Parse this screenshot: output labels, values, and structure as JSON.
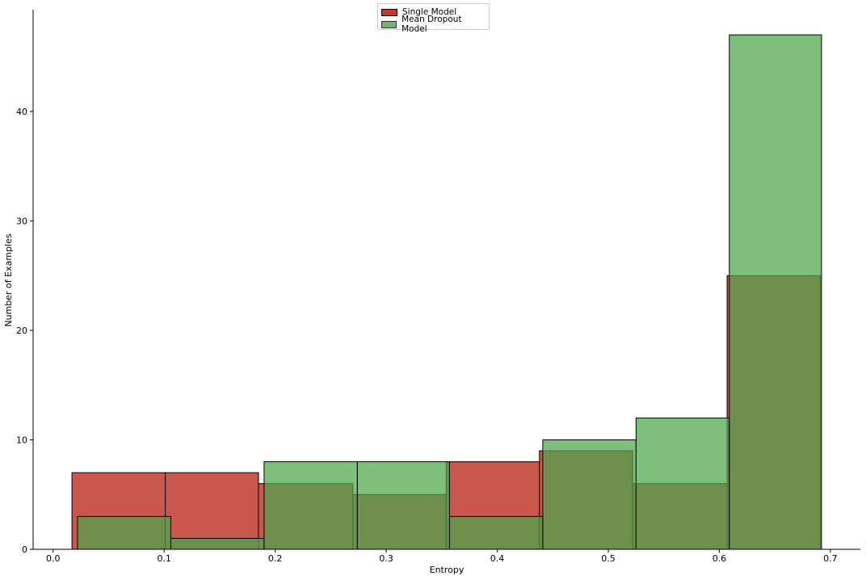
{
  "chart_data": {
    "type": "bar",
    "xlabel": "Entropy",
    "ylabel": "Number of Examples",
    "xlim": [
      -0.018,
      0.727
    ],
    "ylim": [
      0,
      49.3
    ],
    "x_ticks": [
      "0.0",
      "0.1",
      "0.2",
      "0.3",
      "0.4",
      "0.5",
      "0.6",
      "0.7"
    ],
    "y_ticks": [
      "0",
      "10",
      "20",
      "30",
      "40"
    ],
    "legend_position": "top-center",
    "series": [
      {
        "name": "Single Model",
        "color": "#c0392b",
        "bins": [
          {
            "x0": 0.017,
            "x1": 0.101,
            "count": 7
          },
          {
            "x0": 0.101,
            "x1": 0.185,
            "count": 7
          },
          {
            "x0": 0.185,
            "x1": 0.27,
            "count": 6
          },
          {
            "x0": 0.27,
            "x1": 0.354,
            "count": 5
          },
          {
            "x0": 0.354,
            "x1": 0.438,
            "count": 8
          },
          {
            "x0": 0.438,
            "x1": 0.522,
            "count": 9
          },
          {
            "x0": 0.522,
            "x1": 0.607,
            "count": 6
          },
          {
            "x0": 0.607,
            "x1": 0.691,
            "count": 25
          }
        ]
      },
      {
        "name": "Mean Dropout Model",
        "color": "#4ca64c",
        "bins": [
          {
            "x0": 0.022,
            "x1": 0.106,
            "count": 3
          },
          {
            "x0": 0.106,
            "x1": 0.19,
            "count": 1
          },
          {
            "x0": 0.19,
            "x1": 0.274,
            "count": 8
          },
          {
            "x0": 0.274,
            "x1": 0.357,
            "count": 8
          },
          {
            "x0": 0.357,
            "x1": 0.441,
            "count": 3
          },
          {
            "x0": 0.441,
            "x1": 0.525,
            "count": 10
          },
          {
            "x0": 0.525,
            "x1": 0.609,
            "count": 12
          },
          {
            "x0": 0.609,
            "x1": 0.692,
            "count": 47
          }
        ]
      }
    ]
  }
}
